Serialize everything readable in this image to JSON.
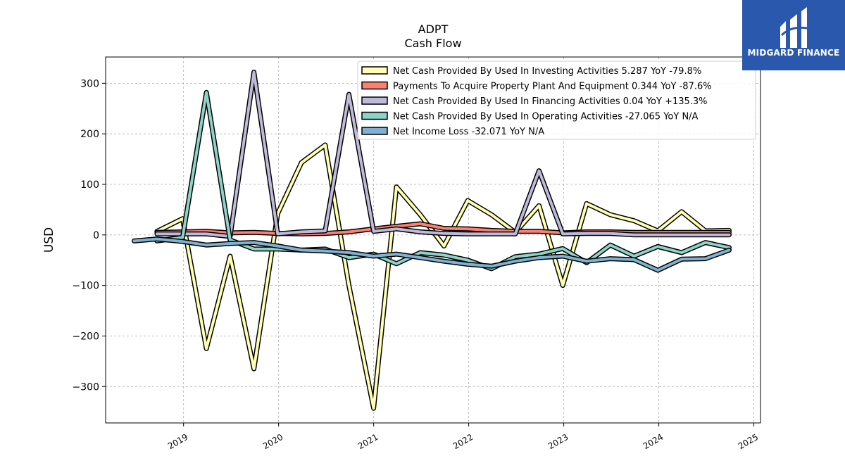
{
  "logo": {
    "text": "MIDGARD FINANCE",
    "icon": "midgard-finance-logo-icon",
    "background": "#2a58ac"
  },
  "chart_data": {
    "type": "line",
    "title": "ADPT",
    "subtitle": "Cash Flow",
    "xlabel": "",
    "ylabel": "USD",
    "ylim": [
      -372,
      352
    ],
    "xlim": [
      2018.18,
      2025.07
    ],
    "yticks": [
      -300,
      -200,
      -100,
      0,
      100,
      200,
      300
    ],
    "ytick_labels": [
      "−300",
      "−200",
      "−100",
      "0",
      "100",
      "200",
      "300"
    ],
    "xticks": [
      2019,
      2020,
      2021,
      2022,
      2023,
      2024,
      2025
    ],
    "xtick_labels": [
      "2019",
      "2020",
      "2021",
      "2022",
      "2023",
      "2024",
      "2025"
    ],
    "grid": true,
    "legend_position": "top-right",
    "series": [
      {
        "name": "Net Cash Provided By Used In Investing Activities",
        "legend_label": "Net Cash Provided By Used In Investing Activities  5.287 YoY -79.8%",
        "color": "#ffffb3",
        "x": [
          2018.72,
          2018.99,
          2019.24,
          2019.49,
          2019.74,
          2019.99,
          2020.24,
          2020.49,
          2020.74,
          2021.0,
          2021.24,
          2021.49,
          2021.74,
          2021.99,
          2022.24,
          2022.49,
          2022.74,
          2022.99,
          2023.24,
          2023.49,
          2023.74,
          2023.99,
          2024.24,
          2024.49,
          2024.74
        ],
        "y": [
          7,
          32,
          -225,
          -42,
          -265,
          42,
          143,
          178,
          -100,
          -343,
          95,
          40,
          -22,
          68,
          40,
          5,
          58,
          -100,
          62,
          40,
          28,
          8,
          46,
          8,
          9
        ]
      },
      {
        "name": "Payments To Acquire Property Plant And Equipment",
        "legend_label": "Payments To Acquire Property Plant And Equipment  0.344 YoY -87.6%",
        "color": "#fb8072",
        "x": [
          2018.72,
          2018.99,
          2019.24,
          2019.49,
          2019.74,
          2019.99,
          2020.24,
          2020.49,
          2020.74,
          2021.0,
          2021.24,
          2021.49,
          2021.74,
          2021.99,
          2022.24,
          2022.49,
          2022.74,
          2022.99,
          2023.24,
          2023.49,
          2023.74,
          2023.99,
          2024.24,
          2024.49,
          2024.74
        ],
        "y": [
          5,
          6,
          7,
          4,
          5,
          3,
          2,
          3,
          6,
          12,
          17,
          22,
          13,
          12,
          9,
          7,
          7,
          4,
          6,
          6,
          5,
          5,
          5,
          5,
          5
        ]
      },
      {
        "name": "Net Cash Provided By Used In Financing Activities",
        "legend_label": "Net Cash Provided By Used In Financing Activities  0.04 YoY +135.3%",
        "color": "#bebada",
        "x": [
          2018.72,
          2018.99,
          2019.24,
          2019.49,
          2019.74,
          2019.99,
          2020.24,
          2020.49,
          2020.74,
          2021.0,
          2021.24,
          2021.49,
          2021.74,
          2021.99,
          2022.24,
          2022.49,
          2022.74,
          2022.99,
          2023.24,
          2023.49,
          2023.74,
          2023.99,
          2024.24,
          2024.49,
          2024.74
        ],
        "y": [
          2,
          2,
          2,
          -3,
          322,
          2,
          6,
          8,
          278,
          7,
          12,
          6,
          3,
          2,
          2,
          2,
          127,
          2,
          3,
          3,
          0,
          0,
          0,
          0,
          0
        ]
      },
      {
        "name": "Net Cash Provided By Used In Operating Activities",
        "legend_label": "Net Cash Provided By Used In Operating Activities  -27.065 YoY N/A",
        "color": "#8dd3c7",
        "x": [
          2018.72,
          2018.99,
          2019.24,
          2019.49,
          2019.74,
          2019.99,
          2020.24,
          2020.49,
          2020.74,
          2021.0,
          2021.24,
          2021.49,
          2021.74,
          2021.99,
          2022.24,
          2022.49,
          2022.74,
          2022.99,
          2023.24,
          2023.49,
          2023.74,
          2023.99,
          2024.24,
          2024.49,
          2024.74
        ],
        "y": [
          -12,
          -5,
          282,
          -10,
          -28,
          -28,
          -30,
          -28,
          -45,
          -38,
          -57,
          -35,
          -40,
          -50,
          -67,
          -43,
          -38,
          -27,
          -55,
          -20,
          -42,
          -23,
          -35,
          -15,
          -25
        ]
      },
      {
        "name": "Net Income Loss",
        "legend_label": "Net Income Loss  -32.071 YoY N/A",
        "color": "#80b1d3",
        "x": [
          2018.48,
          2018.72,
          2018.99,
          2019.24,
          2019.49,
          2019.74,
          2019.99,
          2020.24,
          2020.49,
          2020.74,
          2021.0,
          2021.24,
          2021.49,
          2021.74,
          2021.99,
          2022.24,
          2022.49,
          2022.74,
          2022.99,
          2023.24,
          2023.49,
          2023.74,
          2023.99,
          2024.24,
          2024.49,
          2024.74
        ],
        "y": [
          -12,
          -8,
          -13,
          -20,
          -17,
          -15,
          -22,
          -30,
          -32,
          -35,
          -42,
          -38,
          -45,
          -52,
          -58,
          -62,
          -52,
          -45,
          -42,
          -52,
          -47,
          -49,
          -70,
          -48,
          -47,
          -30
        ]
      }
    ]
  }
}
